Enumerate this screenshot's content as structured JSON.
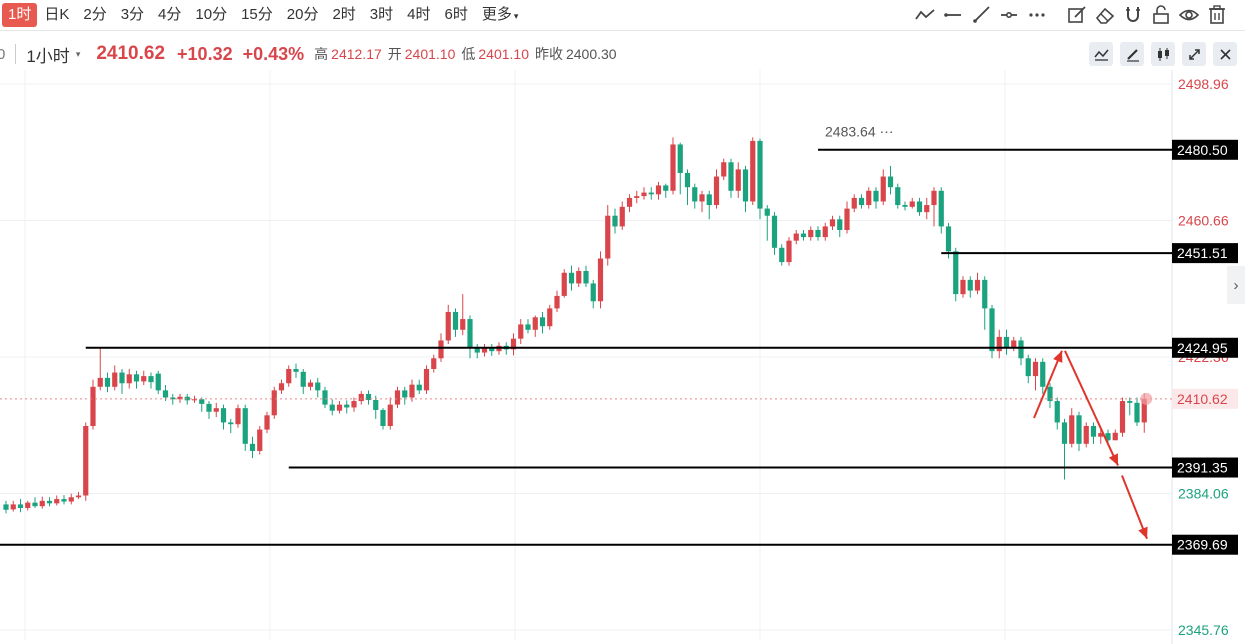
{
  "toolbar": {
    "timeframes": [
      "1时",
      "日K",
      "2分",
      "3分",
      "4分",
      "10分",
      "15分",
      "20分",
      "2时",
      "3时",
      "4时",
      "6时",
      "更多"
    ],
    "active_timeframe": "1时",
    "more_caret": "▾",
    "draw_tools": [
      "trend-line-icon",
      "horizontal-line-icon",
      "ray-icon",
      "horizontal-ray-icon",
      "more-dots-icon"
    ],
    "action_tools": [
      "edit-icon",
      "eraser-icon",
      "magnet-icon",
      "unlock-icon",
      "eye-icon",
      "trash-icon"
    ]
  },
  "info": {
    "period": "1小时",
    "period_caret": "▾",
    "price": "2410.62",
    "change": "+10.32",
    "change_pct": "+0.43%",
    "high_label": "高",
    "high": "2412.17",
    "open_label": "开",
    "open": "2401.10",
    "low_label": "低",
    "low": "2401.10",
    "prev_label": "昨收",
    "prev": "2400.30",
    "edge_char": "0",
    "buttons": [
      "indicator-icon",
      "pen-icon",
      "candle-type-icon",
      "expand-icon",
      "close-icon"
    ]
  },
  "side_arrow": "›",
  "colors": {
    "up": "#d8464b",
    "down": "#1aa37e",
    "line": "#000000",
    "arrow": "#e0352b",
    "grid": "#edf0f3"
  },
  "chart_data": {
    "type": "candlestick",
    "yaxis_ticks": [
      {
        "value": 2498.96,
        "color": "red"
      },
      {
        "value": 2460.66,
        "color": "red"
      },
      {
        "value": 2422.36,
        "color": "red"
      },
      {
        "value": 2384.06,
        "color": "green"
      },
      {
        "value": 2345.76,
        "color": "green"
      }
    ],
    "level_labels": [
      "2480.50",
      "2451.51",
      "2424.95",
      "2410.62",
      "2391.35",
      "2369.69"
    ],
    "horizontal_lines": [
      {
        "value": 2480.5,
        "from_bar": 112
      },
      {
        "value": 2451.51,
        "from_bar": 129
      },
      {
        "value": 2424.95,
        "from_bar": 11
      },
      {
        "value": 2391.35,
        "from_bar": 39
      },
      {
        "value": 2369.69,
        "from_bar": 0
      }
    ],
    "current_price": 2410.62,
    "high_annotation": {
      "text": "2483.64",
      "value": 2483.64,
      "bar": 112
    },
    "forecast_path": [
      2410.62,
      2424.95,
      2391.35,
      2369.69
    ],
    "candles": [
      [
        2381,
        2379.5,
        2382,
        2378.5
      ],
      [
        2379.6,
        2381,
        2382,
        2379
      ],
      [
        2381,
        2380,
        2382.5,
        2378.8
      ],
      [
        2380,
        2381.5,
        2382,
        2379.3
      ],
      [
        2381.5,
        2380.5,
        2383,
        2380
      ],
      [
        2380.5,
        2382,
        2383.2,
        2379.8
      ],
      [
        2382,
        2381.3,
        2383,
        2380.5
      ],
      [
        2381.3,
        2382.5,
        2383.5,
        2380.7
      ],
      [
        2382.5,
        2381.8,
        2383.6,
        2381
      ],
      [
        2381.8,
        2383,
        2384,
        2381
      ],
      [
        2383,
        2383.5,
        2384.5,
        2382.5
      ],
      [
        2383.5,
        2403,
        2404,
        2382
      ],
      [
        2403,
        2414,
        2416,
        2402
      ],
      [
        2414,
        2416.5,
        2425,
        2413
      ],
      [
        2416.5,
        2414,
        2418,
        2412.5
      ],
      [
        2414,
        2418,
        2420,
        2413
      ],
      [
        2418,
        2415,
        2419,
        2412
      ],
      [
        2415,
        2417.5,
        2419,
        2413.5
      ],
      [
        2417.5,
        2415.5,
        2418.5,
        2413.5
      ],
      [
        2415.5,
        2417,
        2418.5,
        2414.5
      ],
      [
        2417,
        2415.3,
        2418,
        2413.5
      ],
      [
        2417.7,
        2413,
        2418.5,
        2412
      ],
      [
        2413,
        2411,
        2414.5,
        2410
      ],
      [
        2411,
        2410.5,
        2412,
        2409
      ],
      [
        2410.5,
        2411.2,
        2412,
        2409.5
      ],
      [
        2411.2,
        2410.2,
        2412,
        2409
      ],
      [
        2410.2,
        2410.5,
        2411.5,
        2409.5
      ],
      [
        2410.5,
        2409.2,
        2411,
        2407
      ],
      [
        2409.2,
        2407,
        2410,
        2405
      ],
      [
        2407,
        2408,
        2409.5,
        2405.5
      ],
      [
        2408,
        2404,
        2409,
        2402
      ],
      [
        2404,
        2403.5,
        2405,
        2401
      ],
      [
        2403.5,
        2408,
        2409,
        2402.5
      ],
      [
        2408,
        2398,
        2409,
        2396
      ],
      [
        2398,
        2396,
        2400,
        2394
      ],
      [
        2396,
        2402,
        2403,
        2395
      ],
      [
        2402,
        2406,
        2407,
        2401
      ],
      [
        2406,
        2413,
        2414,
        2405
      ],
      [
        2413,
        2415,
        2416,
        2412
      ],
      [
        2415,
        2419,
        2420,
        2414
      ],
      [
        2419,
        2418.2,
        2420.5,
        2416.5
      ],
      [
        2418.2,
        2414,
        2419,
        2412
      ],
      [
        2414,
        2415.2,
        2416,
        2413
      ],
      [
        2415.2,
        2413,
        2416.5,
        2411
      ],
      [
        2413,
        2409,
        2414,
        2408
      ],
      [
        2409,
        2407.3,
        2410.5,
        2406
      ],
      [
        2407.3,
        2409,
        2410,
        2406.5
      ],
      [
        2409,
        2408.2,
        2410.2,
        2406.5
      ],
      [
        2408.2,
        2410,
        2411,
        2407
      ],
      [
        2410,
        2412,
        2412.8,
        2409
      ],
      [
        2412,
        2410.3,
        2413,
        2409
      ],
      [
        2410.3,
        2407.5,
        2411.5,
        2405
      ],
      [
        2407.5,
        2403,
        2408,
        2402
      ],
      [
        2403,
        2409,
        2411,
        2402
      ],
      [
        2409,
        2413,
        2414,
        2408
      ],
      [
        2413,
        2411,
        2414,
        2409
      ],
      [
        2411,
        2414.6,
        2416,
        2409.8
      ],
      [
        2414.6,
        2413,
        2416,
        2412
      ],
      [
        2413,
        2419,
        2420,
        2412
      ],
      [
        2419,
        2422,
        2423,
        2418
      ],
      [
        2422,
        2427,
        2429,
        2421
      ],
      [
        2427,
        2435,
        2437,
        2426
      ],
      [
        2435,
        2430,
        2436,
        2428
      ],
      [
        2430,
        2433,
        2440,
        2428.5
      ],
      [
        2433,
        2425,
        2434,
        2422
      ],
      [
        2425,
        2423.6,
        2426,
        2422
      ],
      [
        2423.6,
        2425,
        2426,
        2422.5
      ],
      [
        2425,
        2424,
        2426,
        2422.7
      ],
      [
        2424,
        2425.5,
        2426.5,
        2423
      ],
      [
        2425.5,
        2424.5,
        2426.5,
        2423
      ],
      [
        2424.5,
        2427.5,
        2429,
        2422.8
      ],
      [
        2427.5,
        2431.5,
        2433,
        2426
      ],
      [
        2431.5,
        2430,
        2433,
        2429
      ],
      [
        2430,
        2433.5,
        2434,
        2428
      ],
      [
        2433.5,
        2431,
        2435,
        2429
      ],
      [
        2431,
        2436,
        2437,
        2430
      ],
      [
        2436,
        2439.5,
        2441,
        2435
      ],
      [
        2439.5,
        2446,
        2447,
        2439
      ],
      [
        2446,
        2443,
        2448,
        2441
      ],
      [
        2443,
        2446.5,
        2447.5,
        2442
      ],
      [
        2446.5,
        2443,
        2448,
        2442
      ],
      [
        2443,
        2438,
        2444,
        2436
      ],
      [
        2438,
        2450,
        2452,
        2436
      ],
      [
        2450,
        2462,
        2465,
        2448
      ],
      [
        2462,
        2459,
        2464,
        2457
      ],
      [
        2459,
        2464.5,
        2466,
        2458
      ],
      [
        2464.5,
        2467,
        2468,
        2463
      ],
      [
        2467,
        2467.5,
        2469,
        2465.5
      ],
      [
        2467.5,
        2468.5,
        2470,
        2466.5
      ],
      [
        2468.5,
        2468,
        2470,
        2466.5
      ],
      [
        2468,
        2470.5,
        2471.5,
        2466.5
      ],
      [
        2470.5,
        2469,
        2471,
        2467
      ],
      [
        2469,
        2482,
        2484,
        2468
      ],
      [
        2482,
        2474,
        2482.5,
        2468
      ],
      [
        2474,
        2470,
        2475,
        2465
      ],
      [
        2470,
        2466,
        2471,
        2464
      ],
      [
        2466,
        2468,
        2469,
        2463
      ],
      [
        2468,
        2465,
        2469,
        2461
      ],
      [
        2465,
        2473,
        2475,
        2464
      ],
      [
        2473,
        2477,
        2478,
        2472
      ],
      [
        2477,
        2469,
        2478,
        2467
      ],
      [
        2469,
        2475,
        2477,
        2467
      ],
      [
        2475,
        2466,
        2476,
        2463
      ],
      [
        2466,
        2483,
        2484,
        2465
      ],
      [
        2483,
        2464,
        2483.64,
        2461
      ],
      [
        2464,
        2462,
        2465,
        2455
      ],
      [
        2462,
        2453,
        2463,
        2451
      ],
      [
        2453,
        2449,
        2454,
        2448
      ],
      [
        2449,
        2455,
        2456,
        2448
      ],
      [
        2455,
        2457,
        2458,
        2454
      ],
      [
        2457,
        2456,
        2458,
        2455
      ],
      [
        2456,
        2458,
        2459,
        2455
      ],
      [
        2458,
        2456,
        2459,
        2455
      ],
      [
        2456,
        2459,
        2460,
        2455
      ],
      [
        2459,
        2461,
        2462,
        2458
      ],
      [
        2461,
        2458,
        2462,
        2456
      ],
      [
        2458,
        2464,
        2466,
        2457
      ],
      [
        2464,
        2467,
        2468,
        2463
      ],
      [
        2467,
        2465,
        2468,
        2464
      ],
      [
        2465,
        2469,
        2470,
        2464
      ],
      [
        2469,
        2466,
        2470,
        2464
      ],
      [
        2466,
        2473,
        2475,
        2465
      ],
      [
        2473,
        2470,
        2476,
        2468
      ],
      [
        2470,
        2465,
        2471,
        2464
      ],
      [
        2465,
        2464.5,
        2466,
        2463.5
      ],
      [
        2464.5,
        2466,
        2467,
        2464
      ],
      [
        2466,
        2463,
        2467,
        2462
      ],
      [
        2463,
        2465,
        2467,
        2461
      ],
      [
        2465,
        2469,
        2470,
        2459
      ],
      [
        2469,
        2459,
        2470,
        2457
      ],
      [
        2459,
        2452,
        2460,
        2450
      ],
      [
        2452,
        2440,
        2453,
        2438
      ],
      [
        2440,
        2444,
        2445,
        2439
      ],
      [
        2444,
        2441,
        2445,
        2439
      ],
      [
        2441,
        2444,
        2446,
        2440
      ],
      [
        2444,
        2436,
        2445,
        2430
      ],
      [
        2436,
        2424,
        2437,
        2422
      ],
      [
        2424,
        2428,
        2430,
        2422
      ],
      [
        2428,
        2425,
        2430,
        2423
      ],
      [
        2425,
        2427,
        2428,
        2424
      ],
      [
        2427,
        2422,
        2428,
        2420
      ],
      [
        2422,
        2417,
        2423,
        2415
      ],
      [
        2417,
        2421,
        2422,
        2413
      ],
      [
        2421,
        2414,
        2422,
        2412
      ],
      [
        2414,
        2410,
        2415,
        2408
      ],
      [
        2410,
        2404,
        2411,
        2402
      ],
      [
        2404,
        2398,
        2405,
        2388
      ],
      [
        2398,
        2406,
        2408,
        2397
      ],
      [
        2406,
        2398,
        2407,
        2396
      ],
      [
        2398,
        2403,
        2404,
        2397
      ],
      [
        2403,
        2400,
        2404,
        2398
      ],
      [
        2400,
        2401,
        2402,
        2398
      ],
      [
        2401,
        2399,
        2402,
        2398
      ],
      [
        2399,
        2401.1,
        2402,
        2399
      ],
      [
        2401.1,
        2410,
        2411,
        2400
      ],
      [
        2410,
        2409.5,
        2411,
        2406
      ],
      [
        2409.5,
        2404,
        2411,
        2403
      ],
      [
        2404,
        2410.62,
        2412.17,
        2401.1
      ]
    ]
  }
}
